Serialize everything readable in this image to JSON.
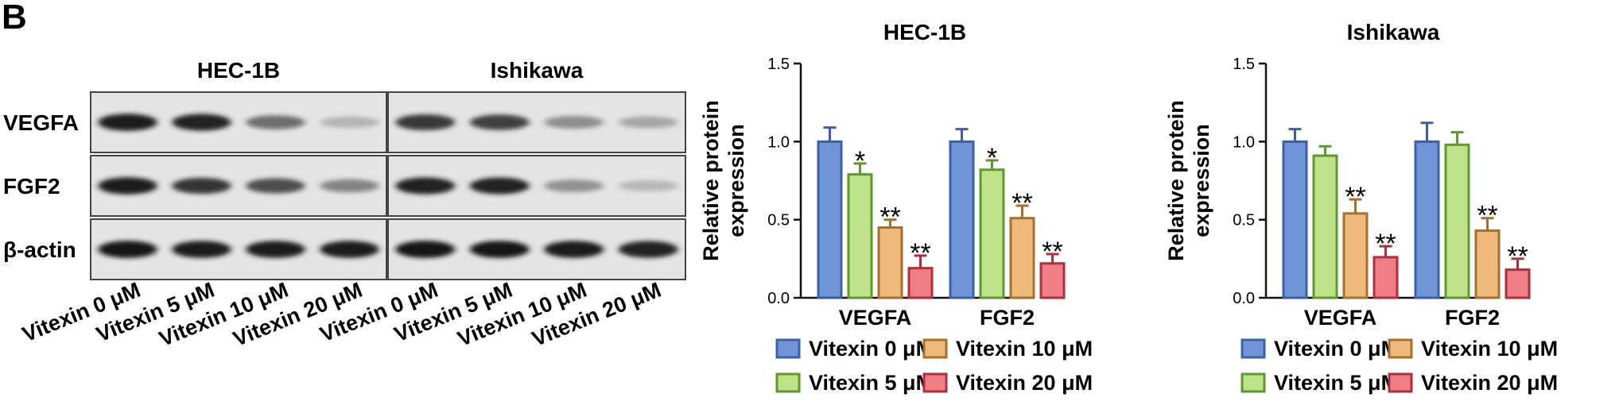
{
  "figure": {
    "panel_label": "B"
  },
  "western_blot": {
    "groups": [
      "HEC-1B",
      "Ishikawa"
    ],
    "rows": [
      {
        "label": "VEGFA",
        "intensity": [
          0.95,
          0.92,
          0.55,
          0.22,
          0.8,
          0.76,
          0.4,
          0.28
        ]
      },
      {
        "label": "FGF2",
        "intensity": [
          0.95,
          0.82,
          0.7,
          0.45,
          0.92,
          0.9,
          0.38,
          0.2
        ]
      },
      {
        "label": "β-actin",
        "intensity": [
          0.97,
          0.95,
          0.95,
          0.95,
          0.97,
          0.96,
          0.95,
          0.92
        ]
      }
    ],
    "lanes": [
      "Vitexin 0 μM",
      "Vitexin 5 μM",
      "Vitexin 10 μM",
      "Vitexin 20 μM",
      "Vitexin 0 μM",
      "Vitexin 5 μM",
      "Vitexin 10 μM",
      "Vitexin 20 μM"
    ]
  },
  "series_colors": {
    "Vitexin 0 μM": {
      "fill": "#6f95d8",
      "stroke": "#3b5fa8"
    },
    "Vitexin 5 μM": {
      "fill": "#bfe38a",
      "stroke": "#5c9a2a"
    },
    "Vitexin 10 μM": {
      "fill": "#f0b97c",
      "stroke": "#a8702a"
    },
    "Vitexin 20 μM": {
      "fill": "#ef7e86",
      "stroke": "#b02f3a"
    }
  },
  "chart_data": [
    {
      "type": "bar",
      "title": "HEC-1B",
      "xlabel": "",
      "ylabel": "Relative protein expression",
      "ylim": [
        0,
        1.5
      ],
      "yticks": [
        "0.0",
        "0.5",
        "1.0",
        "1.5"
      ],
      "categories": [
        "VEGFA",
        "FGF2"
      ],
      "series": [
        {
          "name": "Vitexin 0 μM",
          "values": [
            1.0,
            1.0
          ],
          "errors": [
            0.09,
            0.08
          ],
          "sig": [
            "",
            ""
          ]
        },
        {
          "name": "Vitexin 5 μM",
          "values": [
            0.79,
            0.82
          ],
          "errors": [
            0.07,
            0.06
          ],
          "sig": [
            "*",
            "*"
          ]
        },
        {
          "name": "Vitexin 10 μM",
          "values": [
            0.45,
            0.51
          ],
          "errors": [
            0.05,
            0.08
          ],
          "sig": [
            "**",
            "**"
          ]
        },
        {
          "name": "Vitexin 20 μM",
          "values": [
            0.19,
            0.22
          ],
          "errors": [
            0.08,
            0.06
          ],
          "sig": [
            "**",
            "**"
          ]
        }
      ],
      "legend": "bottom"
    },
    {
      "type": "bar",
      "title": "Ishikawa",
      "xlabel": "",
      "ylabel": "Relative protein expression",
      "ylim": [
        0,
        1.5
      ],
      "yticks": [
        "0.0",
        "0.5",
        "1.0",
        "1.5"
      ],
      "categories": [
        "VEGFA",
        "FGF2"
      ],
      "series": [
        {
          "name": "Vitexin 0 μM",
          "values": [
            1.0,
            1.0
          ],
          "errors": [
            0.08,
            0.12
          ],
          "sig": [
            "",
            ""
          ]
        },
        {
          "name": "Vitexin 5 μM",
          "values": [
            0.91,
            0.98
          ],
          "errors": [
            0.06,
            0.08
          ],
          "sig": [
            "",
            ""
          ]
        },
        {
          "name": "Vitexin 10 μM",
          "values": [
            0.54,
            0.43
          ],
          "errors": [
            0.09,
            0.08
          ],
          "sig": [
            "**",
            "**"
          ]
        },
        {
          "name": "Vitexin 20 μM",
          "values": [
            0.26,
            0.18
          ],
          "errors": [
            0.07,
            0.07
          ],
          "sig": [
            "**",
            "**"
          ]
        }
      ],
      "legend": "bottom"
    }
  ]
}
